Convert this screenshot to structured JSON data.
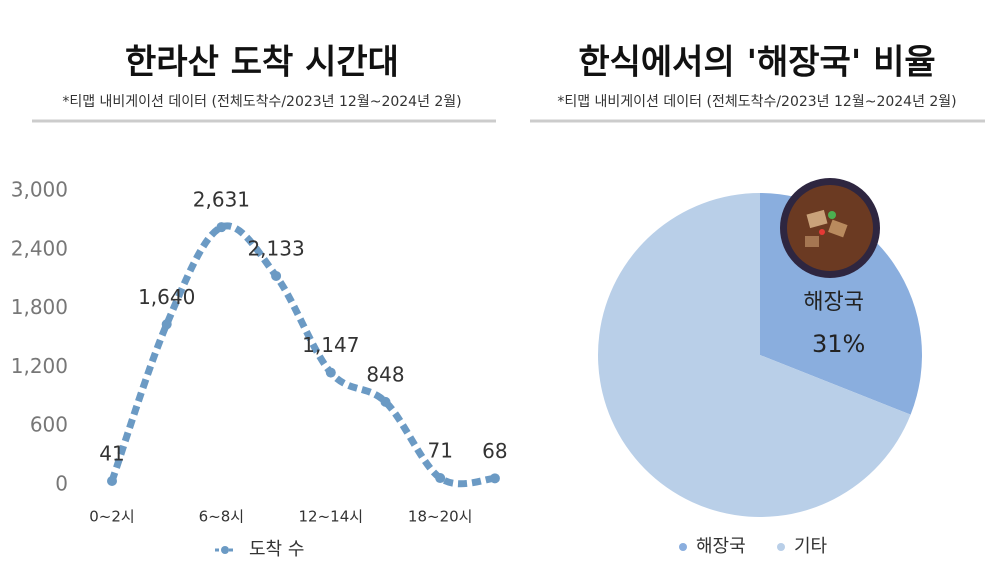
{
  "chart_data": [
    {
      "type": "line",
      "title": "한라산 도착 시간대",
      "subtitle": "*티맵 내비게이션 데이터 (전체도착수/2023년 12월~2024년 2월)",
      "categories": [
        "0~2시",
        null,
        "6~8시",
        null,
        "12~14시",
        null,
        "18~20시",
        null
      ],
      "series": [
        {
          "name": "도착 수",
          "color": "#6b9ac4",
          "values": [
            41,
            1640,
            2631,
            2133,
            1147,
            848,
            71,
            68
          ],
          "value_labels": [
            "41",
            "1,640",
            "2,631",
            "2,133",
            "1,147",
            "848",
            "71",
            "68"
          ]
        }
      ],
      "ylim": [
        0,
        3000
      ],
      "yticks": [
        0,
        {
          "value": 600,
          "label": "600"
        },
        {
          "value": 1200,
          "label": "1,200"
        },
        {
          "value": 1800,
          "label": "1,800"
        },
        {
          "value": 2400,
          "label": "2,400"
        },
        {
          "value": 3000,
          "label": "3,000"
        }
      ],
      "legend": "bottom"
    },
    {
      "type": "pie",
      "title": "한식에서의 '해장국' 비율",
      "subtitle": "*티맵 내비게이션 데이터 (전체도착수/2023년 12월~2024년 2월)",
      "categories": [
        "해장국",
        "기타"
      ],
      "values": [
        31,
        69
      ],
      "value_labels": [
        "31%",
        null
      ],
      "colors": [
        "#8aaede",
        "#b9cfe8"
      ],
      "legend": "bottom"
    }
  ]
}
